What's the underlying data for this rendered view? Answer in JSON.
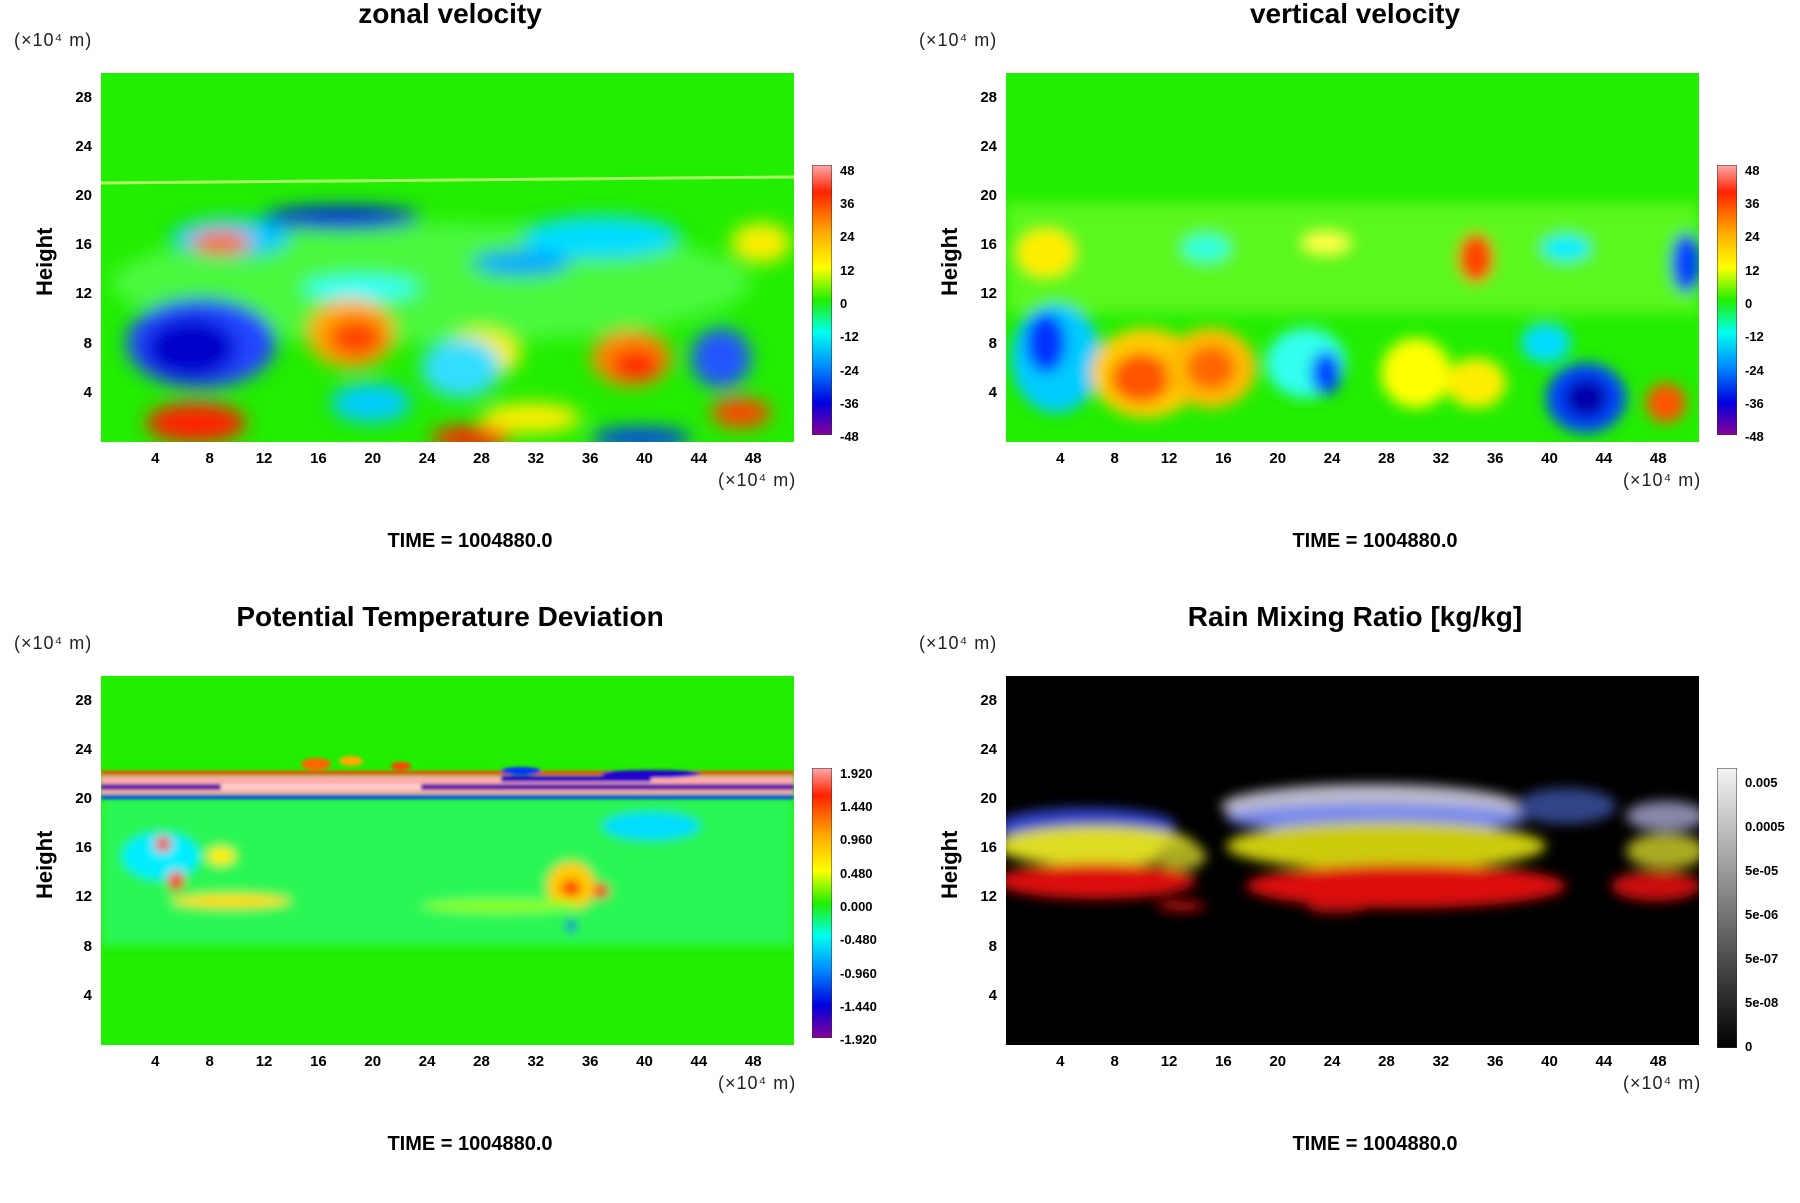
{
  "chart_data": [
    {
      "type": "heatmap",
      "title": "zonal velocity",
      "ylabel": "Height",
      "y_unit": "(×10⁴ m)",
      "x_unit": "(×10⁴ m)",
      "x_ticks": [
        "4",
        "8",
        "12",
        "16",
        "20",
        "24",
        "28",
        "32",
        "36",
        "40",
        "44",
        "48"
      ],
      "y_ticks": [
        "4",
        "8",
        "12",
        "16",
        "20",
        "24",
        "28"
      ],
      "xlim": [
        0,
        51
      ],
      "ylim": [
        0,
        30
      ],
      "colorbar_labels": [
        "48",
        "36",
        "24",
        "12",
        "0",
        "-12",
        "-24",
        "-36",
        "-48"
      ],
      "colormap": "rainbow",
      "time_label": "TIME = 1004880.0"
    },
    {
      "type": "heatmap",
      "title": "vertical velocity",
      "ylabel": "Height",
      "y_unit": "(×10⁴ m)",
      "x_unit": "(×10⁴ m)",
      "x_ticks": [
        "4",
        "8",
        "12",
        "16",
        "20",
        "24",
        "28",
        "32",
        "36",
        "40",
        "44",
        "48"
      ],
      "y_ticks": [
        "4",
        "8",
        "12",
        "16",
        "20",
        "24",
        "28"
      ],
      "xlim": [
        0,
        51
      ],
      "ylim": [
        0,
        30
      ],
      "colorbar_labels": [
        "48",
        "36",
        "24",
        "12",
        "0",
        "-12",
        "-24",
        "-36",
        "-48"
      ],
      "colormap": "rainbow",
      "time_label": "TIME = 1004880.0"
    },
    {
      "type": "heatmap",
      "title": "Potential Temperature Deviation",
      "ylabel": "Height",
      "y_unit": "(×10⁴ m)",
      "x_unit": "(×10⁴ m)",
      "x_ticks": [
        "4",
        "8",
        "12",
        "16",
        "20",
        "24",
        "28",
        "32",
        "36",
        "40",
        "44",
        "48"
      ],
      "y_ticks": [
        "4",
        "8",
        "12",
        "16",
        "20",
        "24",
        "28"
      ],
      "xlim": [
        0,
        51
      ],
      "ylim": [
        0,
        30
      ],
      "colorbar_labels": [
        "1.920",
        "1.440",
        "0.960",
        "0.480",
        "0.000",
        "-0.480",
        "-0.960",
        "-1.440",
        "-1.920"
      ],
      "colormap": "rainbow",
      "time_label": "TIME = 1004880.0"
    },
    {
      "type": "heatmap",
      "title": "Rain Mixing Ratio [kg/kg]",
      "ylabel": "Height",
      "y_unit": "(×10⁴ m)",
      "x_unit": "(×10⁴ m)",
      "x_ticks": [
        "4",
        "8",
        "12",
        "16",
        "20",
        "24",
        "28",
        "32",
        "36",
        "40",
        "44",
        "48"
      ],
      "y_ticks": [
        "4",
        "8",
        "12",
        "16",
        "20",
        "24",
        "28"
      ],
      "xlim": [
        0,
        51
      ],
      "ylim": [
        0,
        30
      ],
      "colorbar_labels": [
        "0.005",
        "0.0005",
        "5e-05",
        "5e-06",
        "5e-07",
        "5e-08",
        "0"
      ],
      "colormap": "grayscale",
      "time_label": "TIME = 1004880.0"
    }
  ],
  "colors": {
    "background_green": "#22ee00",
    "rain_background": "#000000"
  }
}
